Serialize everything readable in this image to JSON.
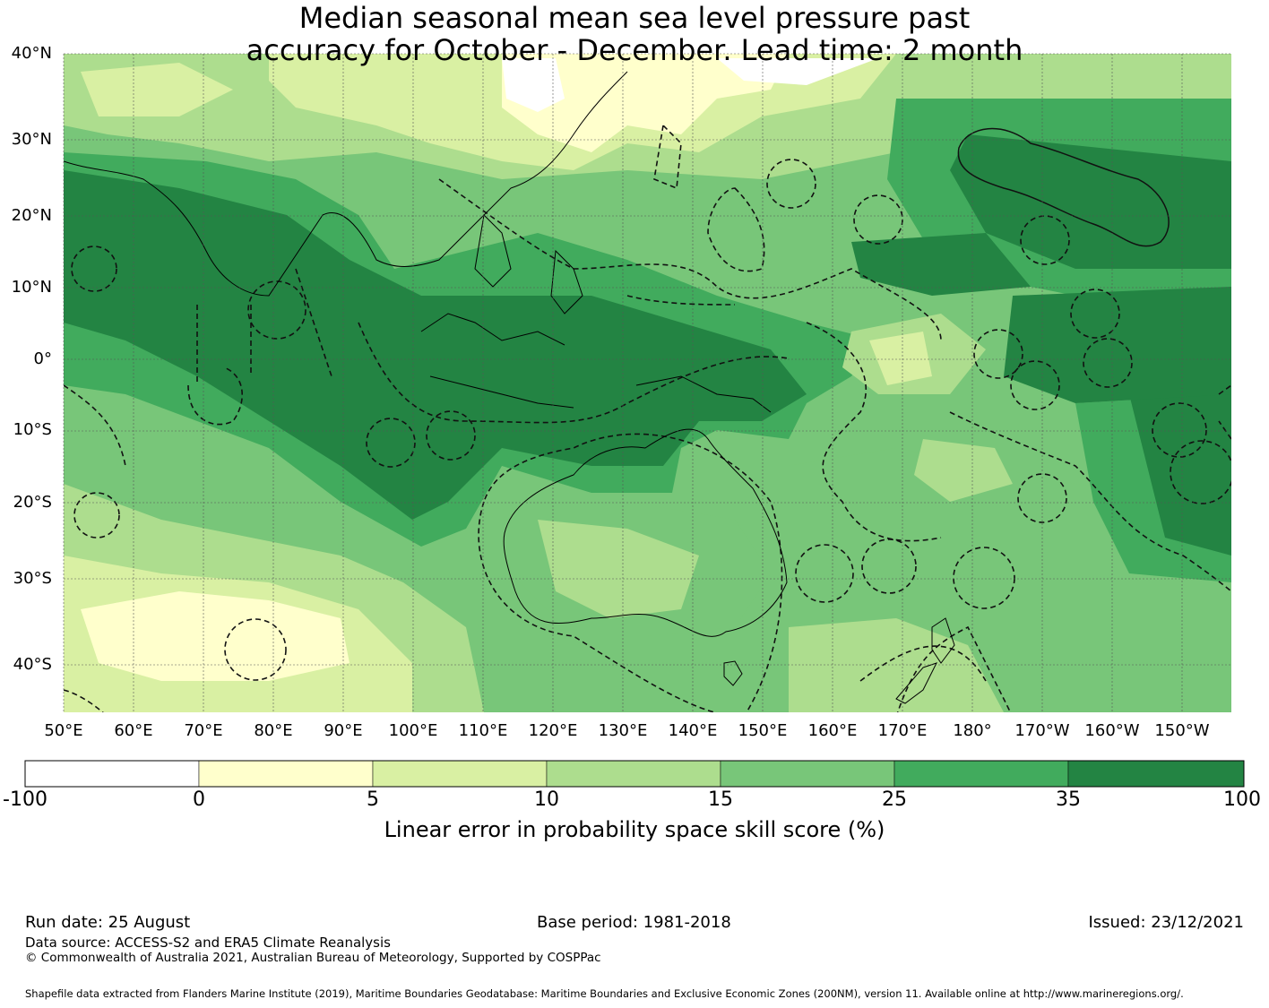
{
  "title_line1": "Median seasonal mean sea level pressure past",
  "title_line2": "accuracy for October - December. Lead time: 2 month",
  "lat_labels": [
    "40°N",
    "30°N",
    "20°N",
    "10°N",
    "0°",
    "10°S",
    "20°S",
    "30°S",
    "40°S"
  ],
  "lon_labels": [
    "50°E",
    "60°E",
    "70°E",
    "80°E",
    "90°E",
    "100°E",
    "110°E",
    "120°E",
    "130°E",
    "140°E",
    "150°E",
    "160°E",
    "170°E",
    "180°",
    "170°W",
    "160°W",
    "150°W"
  ],
  "colorbar": {
    "ticks": [
      "-100",
      "0",
      "5",
      "10",
      "15",
      "25",
      "35",
      "100"
    ],
    "colors": [
      "#ffffff",
      "#ffffcc",
      "#d9f0a3",
      "#addd8e",
      "#78c679",
      "#41ab5d",
      "#238443"
    ],
    "label": "Linear error in probability space skill score (%)"
  },
  "footer": {
    "run_date": "Run date: 25 August",
    "base_period": "Base period: 1981-2018",
    "issued": "Issued: 23/12/2021",
    "data_source": "Data source: ACCESS-S2 and ERA5 Climate Reanalysis",
    "copyright": "© Commonwealth of Australia 2021, Australian Bureau of Meteorology, Supported by COSPPac",
    "shapefile": "Shapefile data extracted from Flanders Marine Institute (2019), Maritime Boundaries Geodatabase: Maritime Boundaries and Exclusive Economic Zones (200NM), version 11. Available online at http://www.marineregions.org/."
  }
}
